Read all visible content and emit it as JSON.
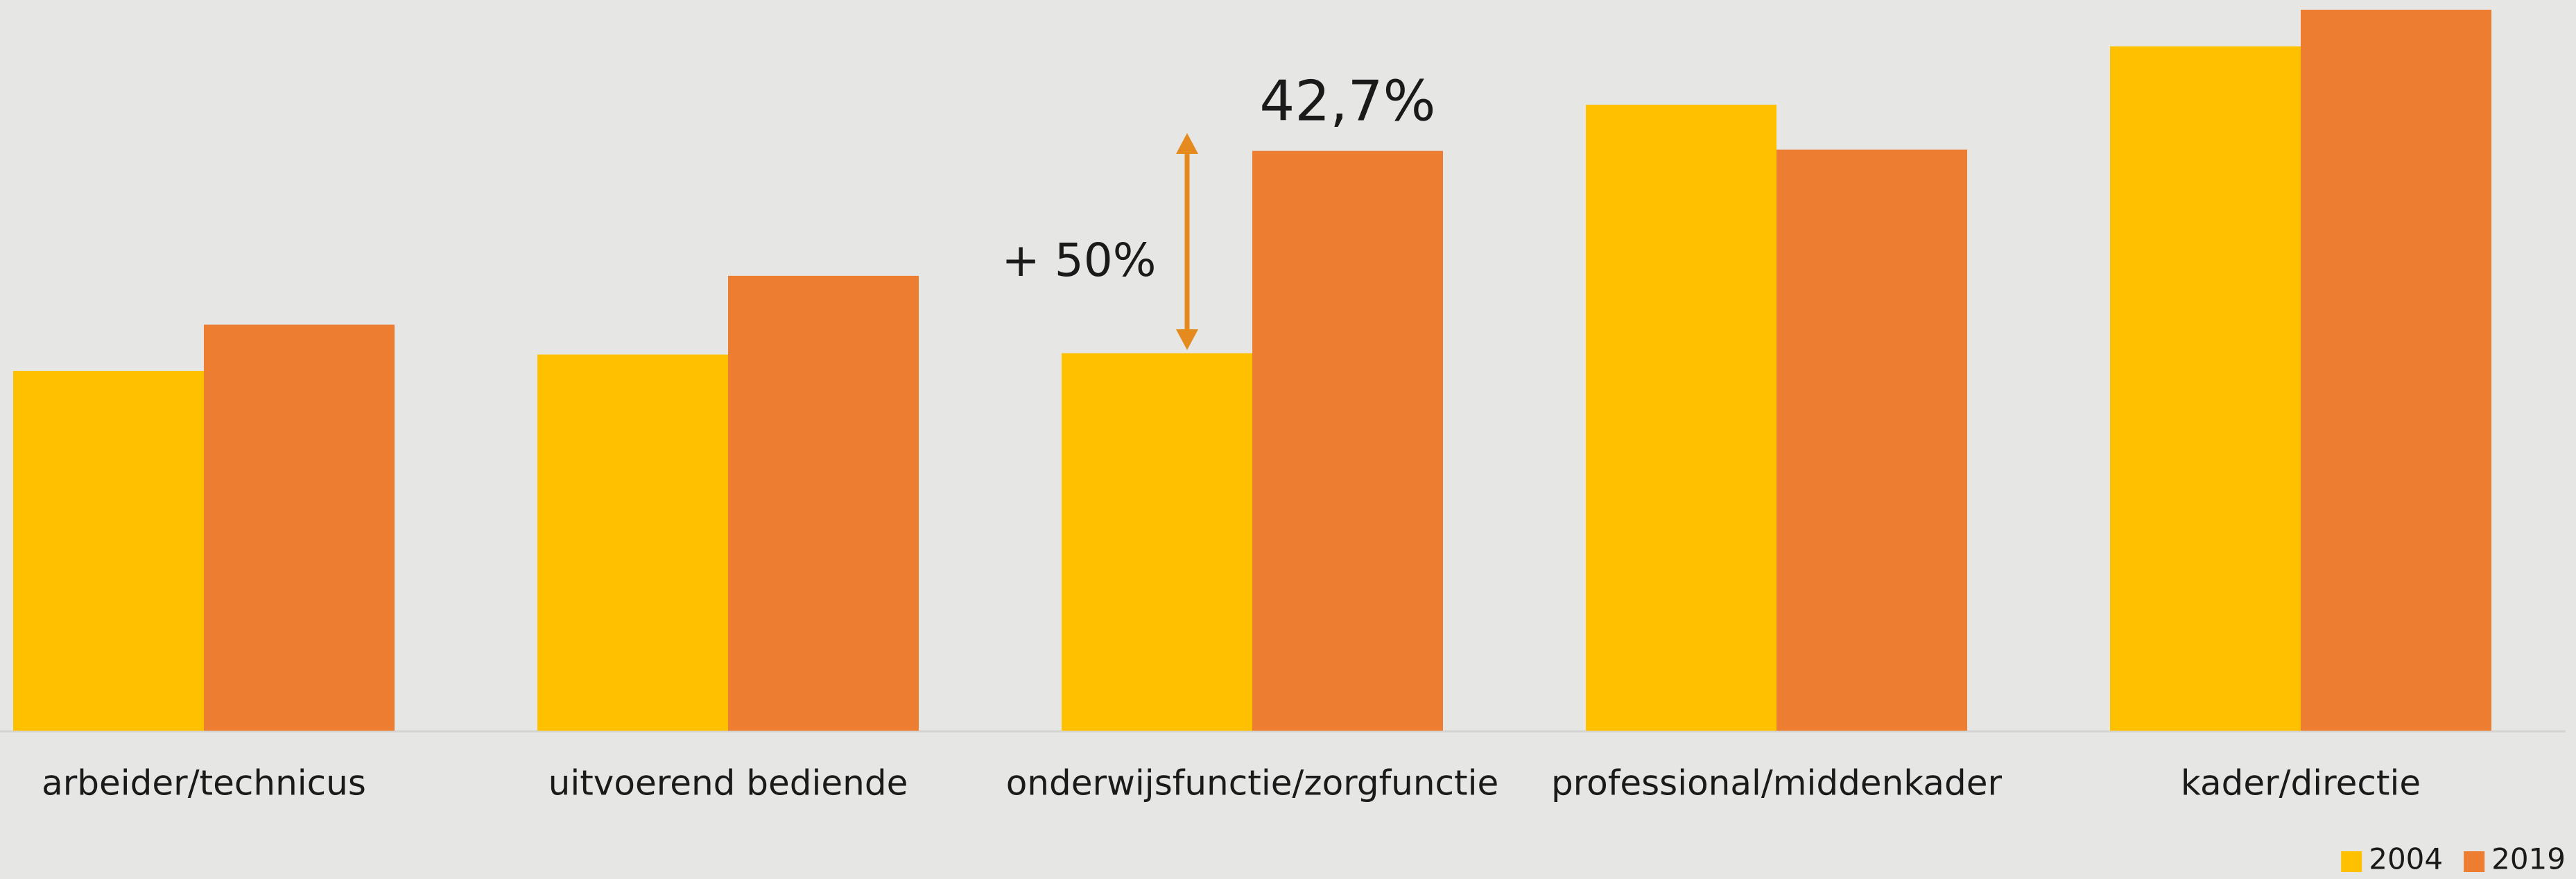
{
  "chart_data": {
    "type": "bar",
    "categories": [
      "arbeider/technicus",
      "uitvoerend bediende",
      "onderwijsfunctie/zorgfunctie",
      "professional/middenkader",
      "kader/directie"
    ],
    "series": [
      {
        "name": "2004",
        "color": "#ffc000",
        "values": [
          26.5,
          27.7,
          27.8,
          46.1,
          50.4
        ]
      },
      {
        "name": "2019",
        "color": "#ed7d31",
        "values": [
          29.9,
          33.5,
          42.7,
          42.8,
          53.1
        ],
        "value_labels": [
          null,
          null,
          "42,7%",
          null,
          null
        ]
      }
    ],
    "annotations": [
      "+ 50%"
    ],
    "legend": "bottom-right"
  }
}
